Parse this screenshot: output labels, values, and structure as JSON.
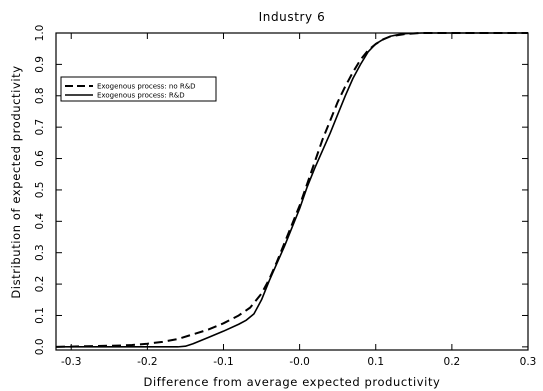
{
  "chart_data": {
    "type": "line",
    "title": "Industry 6",
    "xlabel": "Difference from average expected productivity",
    "ylabel": "Distribution of expected productivity",
    "xlim": [
      -0.32,
      0.3
    ],
    "ylim": [
      -0.01,
      1.0
    ],
    "xticks": [
      -0.3,
      -0.2,
      -0.1,
      0.0,
      0.1,
      0.2,
      0.3
    ],
    "xtick_labels": [
      "-0.3",
      "-0.2",
      "-0.1",
      "-0.0",
      "0.1",
      "0.2",
      "0.3"
    ],
    "yticks": [
      0.0,
      0.1,
      0.2,
      0.3,
      0.4,
      0.5,
      0.6,
      0.7,
      0.8,
      0.9,
      1.0
    ],
    "ytick_labels": [
      "0.0",
      "0.1",
      "0.2",
      "0.3",
      "0.4",
      "0.5",
      "0.6",
      "0.7",
      "0.8",
      "0.9",
      "1.0"
    ],
    "grid": false,
    "legend_position": "top-left",
    "series": [
      {
        "name": "Exogenous process: no R&D",
        "style": "dashed",
        "color": "#000000",
        "x": [
          -0.32,
          -0.28,
          -0.24,
          -0.22,
          -0.2,
          -0.18,
          -0.16,
          -0.14,
          -0.12,
          -0.1,
          -0.08,
          -0.065,
          -0.05,
          -0.04,
          -0.03,
          -0.02,
          -0.01,
          0.0,
          0.01,
          0.02,
          0.03,
          0.04,
          0.05,
          0.06,
          0.07,
          0.08,
          0.09,
          0.1,
          0.11,
          0.12,
          0.14,
          0.16,
          0.2,
          0.25,
          0.3
        ],
        "y": [
          0.0,
          0.002,
          0.004,
          0.006,
          0.01,
          0.016,
          0.025,
          0.04,
          0.055,
          0.075,
          0.1,
          0.125,
          0.17,
          0.215,
          0.27,
          0.33,
          0.39,
          0.45,
          0.52,
          0.59,
          0.66,
          0.72,
          0.78,
          0.83,
          0.875,
          0.915,
          0.945,
          0.965,
          0.98,
          0.99,
          0.997,
          1.0,
          1.0,
          1.0,
          1.0
        ]
      },
      {
        "name": "Exogenous process: R&D",
        "style": "solid",
        "color": "#000000",
        "x": [
          -0.32,
          -0.2,
          -0.17,
          -0.16,
          -0.15,
          -0.14,
          -0.12,
          -0.1,
          -0.08,
          -0.07,
          -0.06,
          -0.05,
          -0.04,
          -0.03,
          -0.02,
          -0.01,
          0.0,
          0.01,
          0.02,
          0.03,
          0.04,
          0.05,
          0.06,
          0.07,
          0.08,
          0.09,
          0.1,
          0.11,
          0.12,
          0.13,
          0.14,
          0.16,
          0.2,
          0.25,
          0.3
        ],
        "y": [
          0.0,
          0.0,
          0.0,
          0.0,
          0.002,
          0.01,
          0.03,
          0.05,
          0.072,
          0.085,
          0.105,
          0.15,
          0.21,
          0.265,
          0.32,
          0.38,
          0.44,
          0.51,
          0.57,
          0.625,
          0.68,
          0.74,
          0.8,
          0.855,
          0.9,
          0.94,
          0.965,
          0.98,
          0.99,
          0.995,
          0.998,
          1.0,
          1.0,
          1.0,
          1.0
        ]
      }
    ]
  }
}
